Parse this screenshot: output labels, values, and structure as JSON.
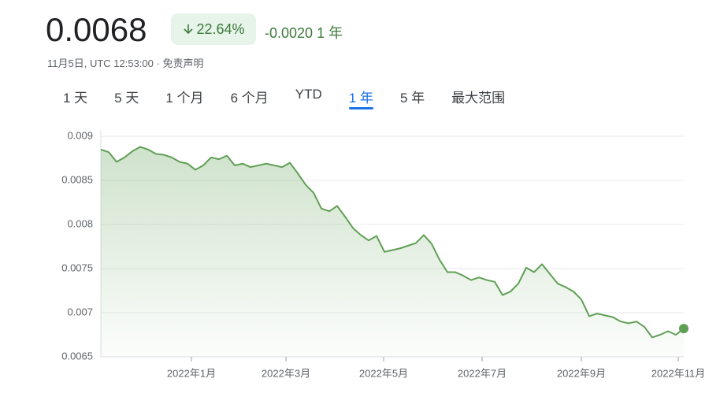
{
  "header": {
    "price": "0.0068",
    "change_percent": "22.64%",
    "change": "-0.0020",
    "period": "1 年",
    "timestamp": "11月5日, UTC 12:53:00",
    "separator": "·",
    "disclaimer": "免责声明"
  },
  "tabs": [
    "1 天",
    "5 天",
    "1 个月",
    "6 个月",
    "YTD",
    "1 年",
    "5 年",
    "最大范围"
  ],
  "selected_tab": 5,
  "chart_data": {
    "type": "line",
    "series": [
      {
        "name": "0.0068",
        "color": "#5f9f54",
        "values": [
          0.00885,
          0.00882,
          0.00871,
          0.00876,
          0.00883,
          0.00888,
          0.00885,
          0.0088,
          0.00879,
          0.00876,
          0.00871,
          0.00869,
          0.00862,
          0.00867,
          0.00876,
          0.00874,
          0.00878,
          0.00867,
          0.00869,
          0.00865,
          0.00867,
          0.00869,
          0.00867,
          0.00865,
          0.0087,
          0.00858,
          0.00845,
          0.00836,
          0.00818,
          0.00815,
          0.00821,
          0.00809,
          0.00796,
          0.00788,
          0.00782,
          0.00787,
          0.00769,
          0.00771,
          0.00773,
          0.00776,
          0.00779,
          0.00788,
          0.00778,
          0.0076,
          0.00746,
          0.00746,
          0.00742,
          0.00737,
          0.0074,
          0.00737,
          0.00735,
          0.0072,
          0.00724,
          0.00733,
          0.00751,
          0.00746,
          0.00755,
          0.00744,
          0.00733,
          0.00729,
          0.00724,
          0.00715,
          0.00696,
          0.00699,
          0.00697,
          0.00695,
          0.0069,
          0.00688,
          0.0069,
          0.00684,
          0.00672,
          0.00675,
          0.00679,
          0.00675,
          0.00682
        ]
      }
    ],
    "xlim": [
      0,
      74
    ],
    "xticks": [
      {
        "value": 11.5,
        "label": "2022年1月"
      },
      {
        "value": 23.5,
        "label": "2022年3月"
      },
      {
        "value": 35.9,
        "label": "2022年5月"
      },
      {
        "value": 48.4,
        "label": "2022年7月"
      },
      {
        "value": 61,
        "label": "2022年9月"
      },
      {
        "value": 73.3,
        "label": "2022年11月"
      }
    ],
    "ylim": [
      0.0065,
      0.009
    ],
    "yticks": [
      0.0065,
      0.007,
      0.0075,
      0.008,
      0.0085,
      0.009
    ],
    "grid": true
  }
}
